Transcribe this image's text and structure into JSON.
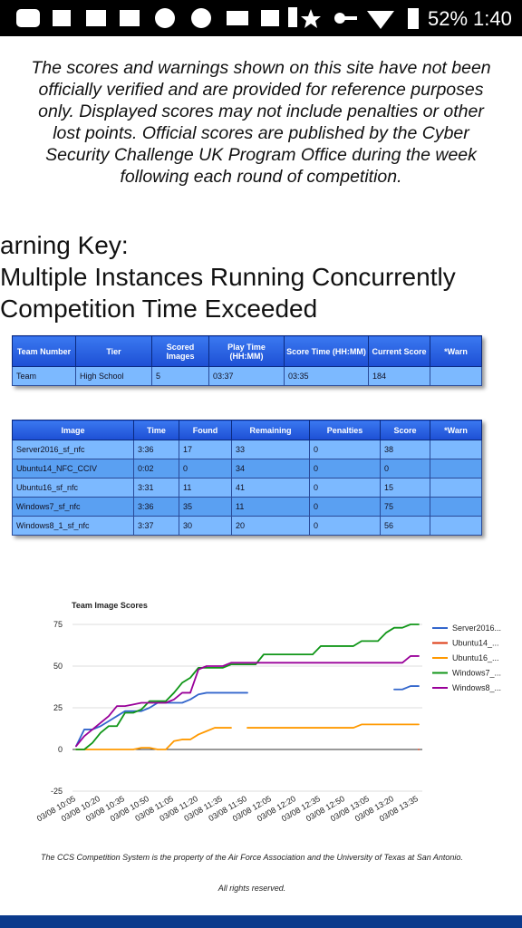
{
  "status_bar": {
    "battery": "52%",
    "time": "1:40"
  },
  "disclaimer": "The scores and warnings shown on this site have not been officially verified and are provided for reference purposes only. Displayed scores may not include penalties or other lost points. Official scores are published by the Cyber Security Challenge UK Program Office during the week following each round of competition.",
  "warning_key": {
    "title": "arning Key:",
    "items": [
      " Multiple Instances Running Concurrently",
      "Competition Time Exceeded"
    ]
  },
  "team_table": {
    "headers": [
      "Team Number",
      "Tier",
      "Scored Images",
      "Play Time (HH:MM)",
      "Score Time (HH:MM)",
      "Current Score",
      "*Warn"
    ],
    "rows": [
      [
        "Team",
        "High School",
        "5",
        "03:37",
        "03:35",
        "184",
        null
      ]
    ]
  },
  "image_table": {
    "headers": [
      "Image",
      "Time",
      "Found",
      "Remaining",
      "Penalties",
      "Score",
      "*Warn"
    ],
    "rows": [
      [
        "Server2016_sf_nfc",
        "3:36",
        "17",
        "33",
        "0",
        "38",
        null
      ],
      [
        "Ubuntu14_NFC_CCIV",
        "0:02",
        "0",
        "34",
        "0",
        "0",
        null
      ],
      [
        "Ubuntu16_sf_nfc",
        "3:31",
        "11",
        "41",
        "0",
        "15",
        null
      ],
      [
        "Windows7_sf_nfc",
        "3:36",
        "35",
        "11",
        "0",
        "75",
        null
      ],
      [
        "Windows8_1_sf_nfc",
        "3:37",
        "30",
        "20",
        "0",
        "56",
        null
      ]
    ]
  },
  "chart_data": {
    "type": "line",
    "title": "Team Image Scores",
    "categories": [
      "03/08 10:05",
      null,
      null,
      "03/08 10:20",
      null,
      null,
      "03/08 10:35",
      null,
      null,
      "03/08 10:50",
      null,
      null,
      "03/08 11:05",
      null,
      null,
      "03/08 11:20",
      null,
      null,
      "03/08 11:35",
      null,
      null,
      "03/08 11:50",
      null,
      null,
      "03/08 12:05",
      null,
      null,
      "03/08 12:20",
      null,
      null,
      "03/08 12:35",
      null,
      null,
      "03/08 12:50",
      null,
      null,
      "03/08 13:05",
      null,
      null,
      "03/08 13:20",
      null,
      null,
      "03/08 13:35"
    ],
    "ylim": [
      -25,
      75
    ],
    "yticks": [
      -25,
      0,
      25,
      50,
      75
    ],
    "grid": true,
    "legend": "right",
    "series": [
      {
        "name": "Server2016...",
        "color": "#3366cc",
        "values": [
          2,
          12,
          12,
          14,
          17,
          20,
          23,
          23,
          23,
          25,
          28,
          28,
          28,
          28,
          30,
          33,
          34,
          34,
          34,
          34,
          34,
          34,
          null,
          null,
          null,
          null,
          null,
          null,
          null,
          null,
          null,
          null,
          null,
          null,
          null,
          null,
          null,
          null,
          null,
          36,
          36,
          38,
          38
        ]
      },
      {
        "name": "Ubuntu14_...",
        "color": "#dc3912",
        "values": [
          null,
          null,
          null,
          null,
          null,
          null,
          null,
          null,
          null,
          null,
          null,
          null,
          null,
          null,
          null,
          null,
          null,
          null,
          null,
          null,
          null,
          null,
          null,
          null,
          null,
          null,
          null,
          null,
          null,
          null,
          null,
          null,
          null,
          null,
          null,
          null,
          null,
          null,
          null,
          null,
          null,
          null,
          0
        ]
      },
      {
        "name": "Ubuntu16_...",
        "color": "#ff9900",
        "values": [
          0,
          0,
          0,
          0,
          0,
          0,
          0,
          0,
          1,
          1,
          0,
          0,
          5,
          6,
          6,
          9,
          11,
          13,
          13,
          13,
          null,
          13,
          13,
          13,
          13,
          13,
          13,
          13,
          13,
          13,
          13,
          13,
          13,
          13,
          13,
          15,
          15,
          15,
          15,
          15,
          15,
          15,
          15
        ]
      },
      {
        "name": "Windows7_...",
        "color": "#109618",
        "values": [
          0,
          0,
          4,
          10,
          14,
          14,
          22,
          22,
          24,
          29,
          29,
          29,
          34,
          40,
          43,
          49,
          49,
          49,
          49,
          51,
          51,
          51,
          51,
          57,
          57,
          57,
          57,
          57,
          57,
          57,
          62,
          62,
          62,
          62,
          62,
          65,
          65,
          65,
          70,
          73,
          73,
          75,
          75
        ]
      },
      {
        "name": "Windows8_...",
        "color": "#990099",
        "values": [
          2,
          8,
          12,
          16,
          20,
          26,
          26,
          27,
          28,
          28,
          28,
          28,
          30,
          34,
          34,
          48,
          50,
          50,
          50,
          52,
          52,
          52,
          52,
          52,
          52,
          52,
          52,
          52,
          52,
          52,
          52,
          52,
          52,
          52,
          52,
          52,
          52,
          52,
          52,
          52,
          52,
          56,
          56
        ]
      }
    ]
  },
  "footer": {
    "notice": "The CCS Competition System is the property of the Air Force Association and the University of Texas at San Antonio.",
    "rights": "All rights reserved."
  }
}
